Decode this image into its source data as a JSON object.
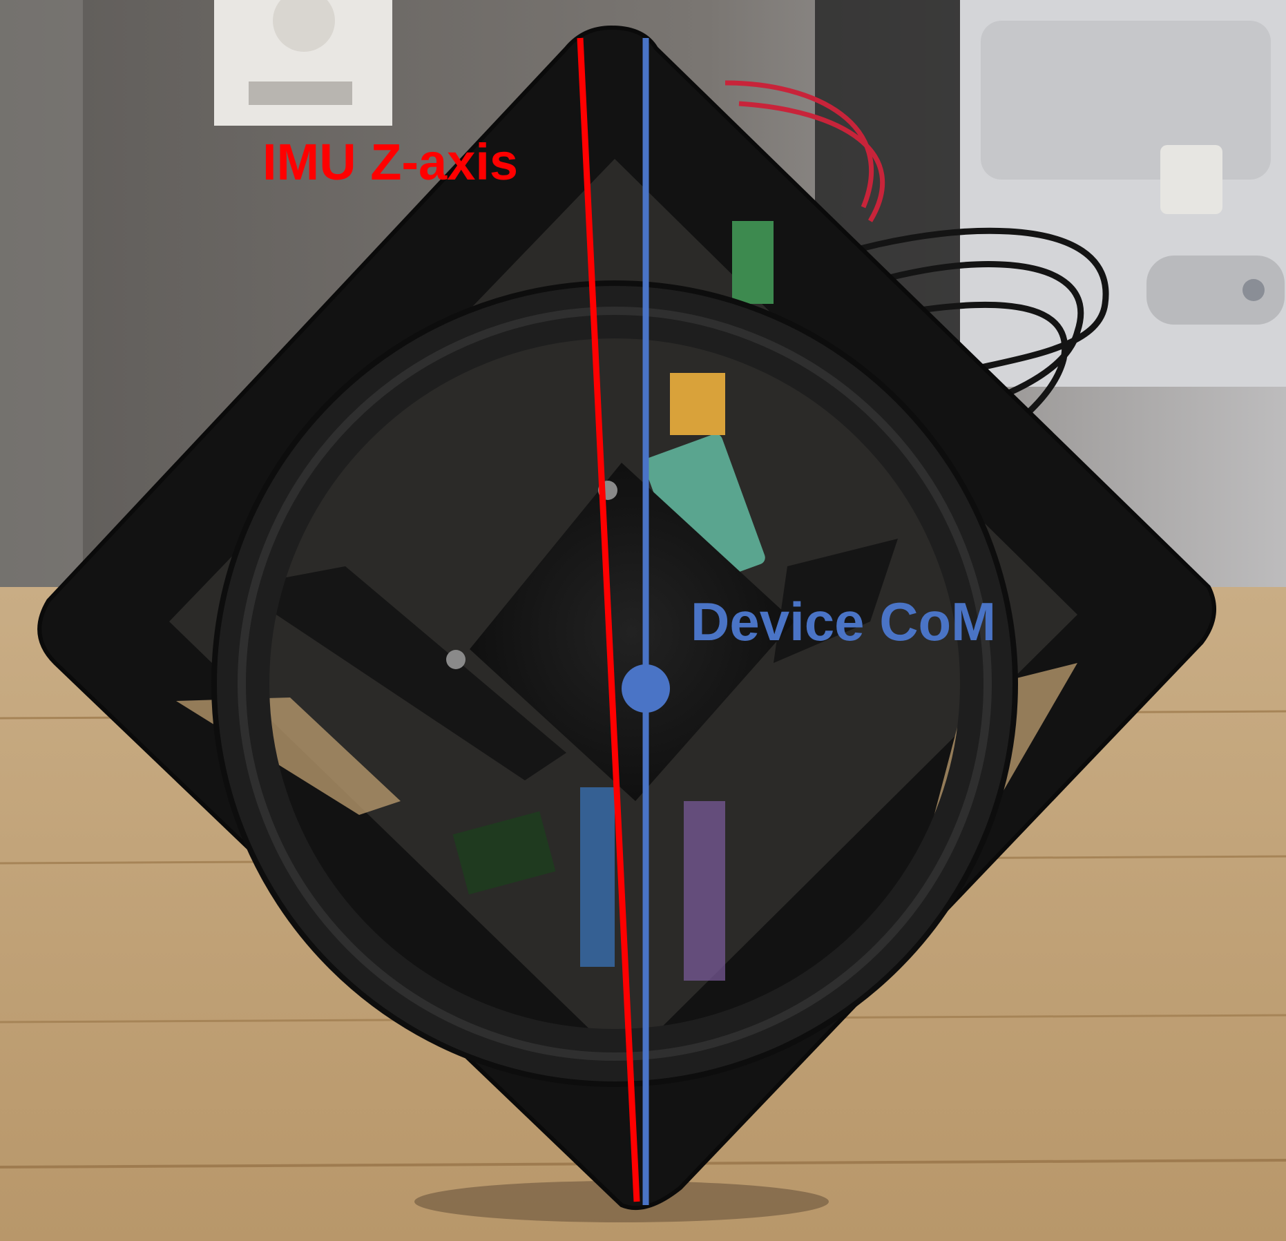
{
  "annotations": {
    "imu_axis_label": "IMU Z-axis",
    "com_label": "Device CoM"
  },
  "colors": {
    "imu_axis": "#ff0000",
    "device_com": "#4a74c6"
  }
}
